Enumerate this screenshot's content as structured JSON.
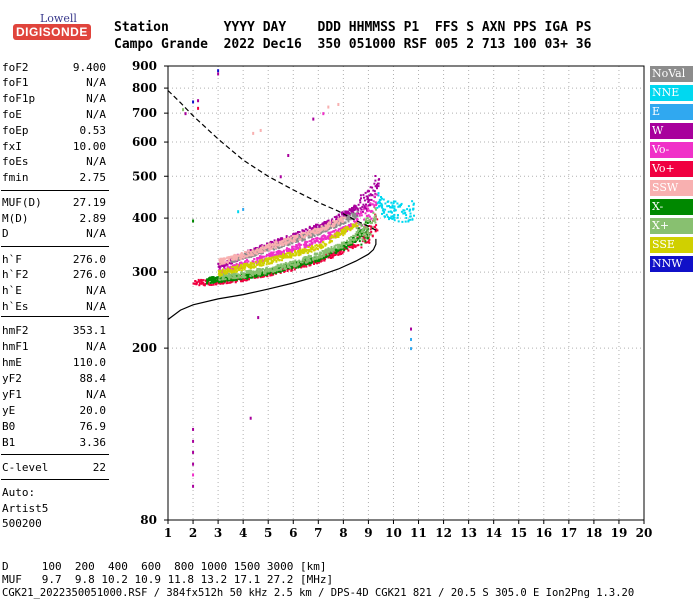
{
  "logo": {
    "brand": "Lowell",
    "product": "DIGISONDE"
  },
  "header": {
    "line1": "Station       YYYY DAY    DDD HHMMSS P1  FFS S AXN PPS IGA PS",
    "line2": "Campo Grande  2022 Dec16  350 051000 RSF 005 2 713 100 03+ 36"
  },
  "params": [
    {
      "label": "foF2",
      "value": "9.400"
    },
    {
      "label": "foF1",
      "value": "N/A"
    },
    {
      "label": "foF1p",
      "value": "N/A"
    },
    {
      "label": "foE",
      "value": "N/A"
    },
    {
      "label": "foEp",
      "value": "0.53"
    },
    {
      "label": "fxI",
      "value": "10.00"
    },
    {
      "label": "foEs",
      "value": "N/A"
    },
    {
      "label": "fmin",
      "value": "2.75"
    },
    {
      "label": "MUF(D)",
      "value": "27.19"
    },
    {
      "label": "M(D)",
      "value": "2.89"
    },
    {
      "label": "D",
      "value": "N/A"
    },
    {
      "label": "h`F",
      "value": "276.0"
    },
    {
      "label": "h`F2",
      "value": "276.0"
    },
    {
      "label": "h`E",
      "value": "N/A"
    },
    {
      "label": "h`Es",
      "value": "N/A"
    },
    {
      "label": "hmF2",
      "value": "353.1"
    },
    {
      "label": "hmF1",
      "value": "N/A"
    },
    {
      "label": "hmE",
      "value": "110.0"
    },
    {
      "label": "yF2",
      "value": "88.4"
    },
    {
      "label": "yF1",
      "value": "N/A"
    },
    {
      "label": "yE",
      "value": "20.0"
    },
    {
      "label": "B0",
      "value": "76.9"
    },
    {
      "label": "B1",
      "value": "3.36"
    },
    {
      "label": "C-level",
      "value": "22"
    }
  ],
  "auto": {
    "line1": "Auto:",
    "line2": "Artist5",
    "line3": "500200"
  },
  "footer": {
    "d_row": "D     100  200  400  600  800 1000 1500 3000 [km]",
    "muf_row": "MUF   9.7  9.8 10.2 10.9 11.8 13.2 17.1 27.2 [MHz]",
    "file_row": "CGK21_2022350051000.RSF / 384fx512h 50 kHz 2.5 km / DPS-4D CGK21 821 / 20.5 S 305.0 E Ion2Png 1.3.20"
  },
  "legend": [
    {
      "label": "NoVal",
      "color": "#8c8c8c"
    },
    {
      "label": "NNE",
      "color": "#00d8f0"
    },
    {
      "label": "E",
      "color": "#30a8f0"
    },
    {
      "label": "W",
      "color": "#a8009c"
    },
    {
      "label": "Vo-",
      "color": "#f030c8"
    },
    {
      "label": "Vo+",
      "color": "#f00040"
    },
    {
      "label": "SSW",
      "color": "#f8b0b0"
    },
    {
      "label": "X-",
      "color": "#008800"
    },
    {
      "label": "X+",
      "color": "#88c070"
    },
    {
      "label": "SSE",
      "color": "#d0d000"
    },
    {
      "label": "NNW",
      "color": "#1010c8"
    }
  ],
  "chart_data": {
    "type": "scatter",
    "xlim": [
      1,
      20
    ],
    "ylim": [
      80,
      900
    ],
    "y_scale": "log",
    "x_ticks": [
      1,
      2,
      3,
      4,
      5,
      6,
      7,
      8,
      9,
      10,
      11,
      12,
      13,
      14,
      15,
      16,
      17,
      18,
      19,
      20
    ],
    "y_ticks": [
      80,
      200,
      300,
      400,
      500,
      600,
      700,
      800,
      900
    ],
    "grid": "dotted",
    "legend_placement": "right",
    "curves": [
      {
        "style": "dashed",
        "x": [
          1.0,
          1.5,
          2.0,
          3.0,
          4.0,
          5.0,
          6.0,
          7.0,
          7.8,
          8.5,
          9.0,
          9.3
        ],
        "y": [
          790,
          740,
          690,
          610,
          545,
          500,
          465,
          435,
          415,
          395,
          383,
          375
        ]
      },
      {
        "style": "solid",
        "x": [
          1.0,
          1.5,
          2.0,
          3.0,
          4.0,
          5.0,
          6.0,
          7.0,
          7.8,
          8.5,
          9.0,
          9.2,
          9.3,
          9.3
        ],
        "y": [
          233,
          245,
          252,
          260,
          266,
          274,
          283,
          294,
          305,
          318,
          330,
          338,
          348,
          358
        ]
      }
    ],
    "echo_traces": [
      {
        "color": "#a8009c",
        "band": "W",
        "x": [
          3.0,
          4.0,
          5.0,
          6.0,
          7.0,
          7.5,
          8.0,
          8.5,
          9.0,
          9.2,
          9.4
        ],
        "y": [
          310,
          330,
          348,
          365,
          385,
          395,
          410,
          425,
          445,
          470,
          510
        ]
      },
      {
        "color": "#f030c8",
        "band": "Vo-",
        "x": [
          3.0,
          4.0,
          5.0,
          6.0,
          7.0,
          8.0,
          8.5,
          9.0,
          9.3
        ],
        "y": [
          300,
          315,
          328,
          342,
          358,
          378,
          392,
          412,
          440
        ]
      },
      {
        "color": "#f00040",
        "band": "Vo+",
        "x": [
          2.0,
          2.5,
          3.0,
          4.0,
          5.0,
          6.0,
          7.0,
          7.5,
          8.0,
          8.5,
          9.0,
          9.3
        ],
        "y": [
          285,
          285,
          287,
          292,
          300,
          310,
          322,
          330,
          340,
          352,
          370,
          395
        ]
      },
      {
        "color": "#008800",
        "band": "X-",
        "x": [
          2.5,
          3.0,
          4.0,
          5.0,
          6.0,
          7.0,
          8.0,
          8.5,
          9.0
        ],
        "y": [
          288,
          290,
          295,
          302,
          312,
          325,
          345,
          360,
          380
        ]
      },
      {
        "color": "#88c070",
        "band": "X+",
        "x": [
          3.0,
          4.0,
          5.0,
          6.0,
          7.0,
          8.0,
          8.5,
          9.0,
          9.3
        ],
        "y": [
          293,
          298,
          305,
          315,
          330,
          350,
          365,
          385,
          410
        ]
      },
      {
        "color": "#00d8f0",
        "band": "NNE",
        "x": [
          9.3,
          9.6,
          9.8,
          10.0,
          10.2,
          10.5,
          10.8
        ],
        "y": [
          440,
          425,
          415,
          420,
          410,
          415,
          420
        ]
      },
      {
        "color": "#8c8c8c",
        "band": "NoVal",
        "x": [
          3.5,
          4.5,
          5.5,
          6.5,
          7.5,
          8.5
        ],
        "y": [
          322,
          335,
          350,
          365,
          385,
          410
        ]
      },
      {
        "color": "#f8b0b0",
        "band": "SSW",
        "x": [
          3.0,
          4.0,
          5.0,
          6.0,
          7.0,
          8.0
        ],
        "y": [
          318,
          330,
          345,
          360,
          378,
          400
        ]
      },
      {
        "color": "#d0d000",
        "band": "SSE",
        "x": [
          3.0,
          5.0,
          7.0,
          8.5
        ],
        "y": [
          300,
          320,
          345,
          390
        ]
      }
    ],
    "scatter_points": [
      {
        "x": 2.0,
        "y": 130,
        "color": "#a8009c"
      },
      {
        "x": 2.0,
        "y": 122,
        "color": "#a8009c"
      },
      {
        "x": 2.0,
        "y": 115,
        "color": "#a8009c"
      },
      {
        "x": 2.0,
        "y": 108,
        "color": "#a8009c"
      },
      {
        "x": 2.0,
        "y": 102,
        "color": "#f030c8"
      },
      {
        "x": 2.0,
        "y": 96,
        "color": "#a8009c"
      },
      {
        "x": 2.0,
        "y": 745,
        "color": "#1010c8"
      },
      {
        "x": 2.2,
        "y": 750,
        "color": "#a8009c"
      },
      {
        "x": 2.2,
        "y": 720,
        "color": "#f00040"
      },
      {
        "x": 1.6,
        "y": 715,
        "color": "#88c070"
      },
      {
        "x": 1.7,
        "y": 700,
        "color": "#a8009c"
      },
      {
        "x": 3.0,
        "y": 880,
        "color": "#1010c8"
      },
      {
        "x": 3.0,
        "y": 865,
        "color": "#a8009c"
      },
      {
        "x": 4.3,
        "y": 138,
        "color": "#a8009c"
      },
      {
        "x": 4.4,
        "y": 630,
        "color": "#f8b0b0"
      },
      {
        "x": 4.7,
        "y": 640,
        "color": "#f8b0b0"
      },
      {
        "x": 6.8,
        "y": 680,
        "color": "#a8009c"
      },
      {
        "x": 7.2,
        "y": 700,
        "color": "#f030c8"
      },
      {
        "x": 7.4,
        "y": 725,
        "color": "#f8b0b0"
      },
      {
        "x": 7.8,
        "y": 735,
        "color": "#f8b0b0"
      },
      {
        "x": 10.7,
        "y": 222,
        "color": "#a8009c"
      },
      {
        "x": 10.7,
        "y": 210,
        "color": "#30a8f0"
      },
      {
        "x": 10.7,
        "y": 200,
        "color": "#30a8f0"
      },
      {
        "x": 2.0,
        "y": 395,
        "color": "#008800"
      },
      {
        "x": 4.6,
        "y": 236,
        "color": "#a8009c"
      },
      {
        "x": 3.8,
        "y": 415,
        "color": "#00d8f0"
      },
      {
        "x": 4.0,
        "y": 420,
        "color": "#30a8f0"
      },
      {
        "x": 5.8,
        "y": 560,
        "color": "#a8009c"
      },
      {
        "x": 5.5,
        "y": 500,
        "color": "#a8009c"
      }
    ]
  }
}
